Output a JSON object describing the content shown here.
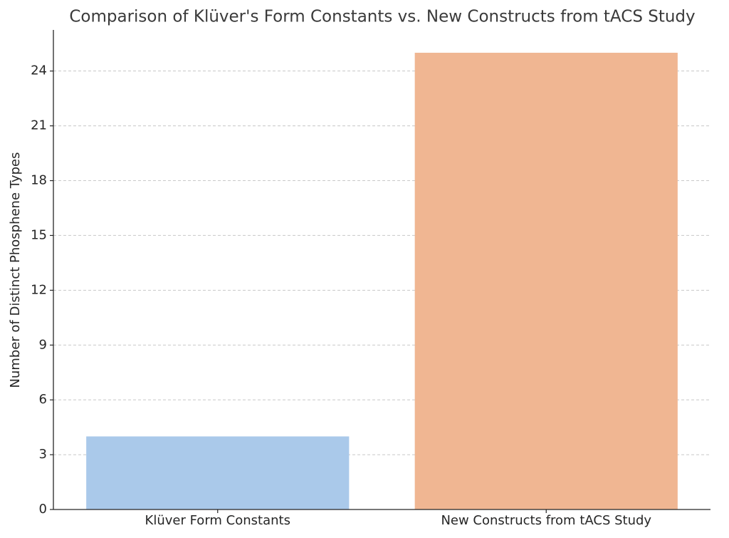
{
  "chart_data": {
    "type": "bar",
    "title": "Comparison of Klüver's Form Constants vs. New Constructs from tACS Study",
    "y_label": "Number of Distinct Phosphene Types",
    "categories": [
      "Klüver Form Constants",
      "New Constructs from tACS Study"
    ],
    "values": [
      4,
      25
    ],
    "colors": [
      "#aac9ea",
      "#f0b692"
    ],
    "ylim": [
      0,
      26.25
    ],
    "yticks": [
      0,
      3,
      6,
      9,
      12,
      15,
      18,
      21,
      24
    ],
    "grid": true
  }
}
